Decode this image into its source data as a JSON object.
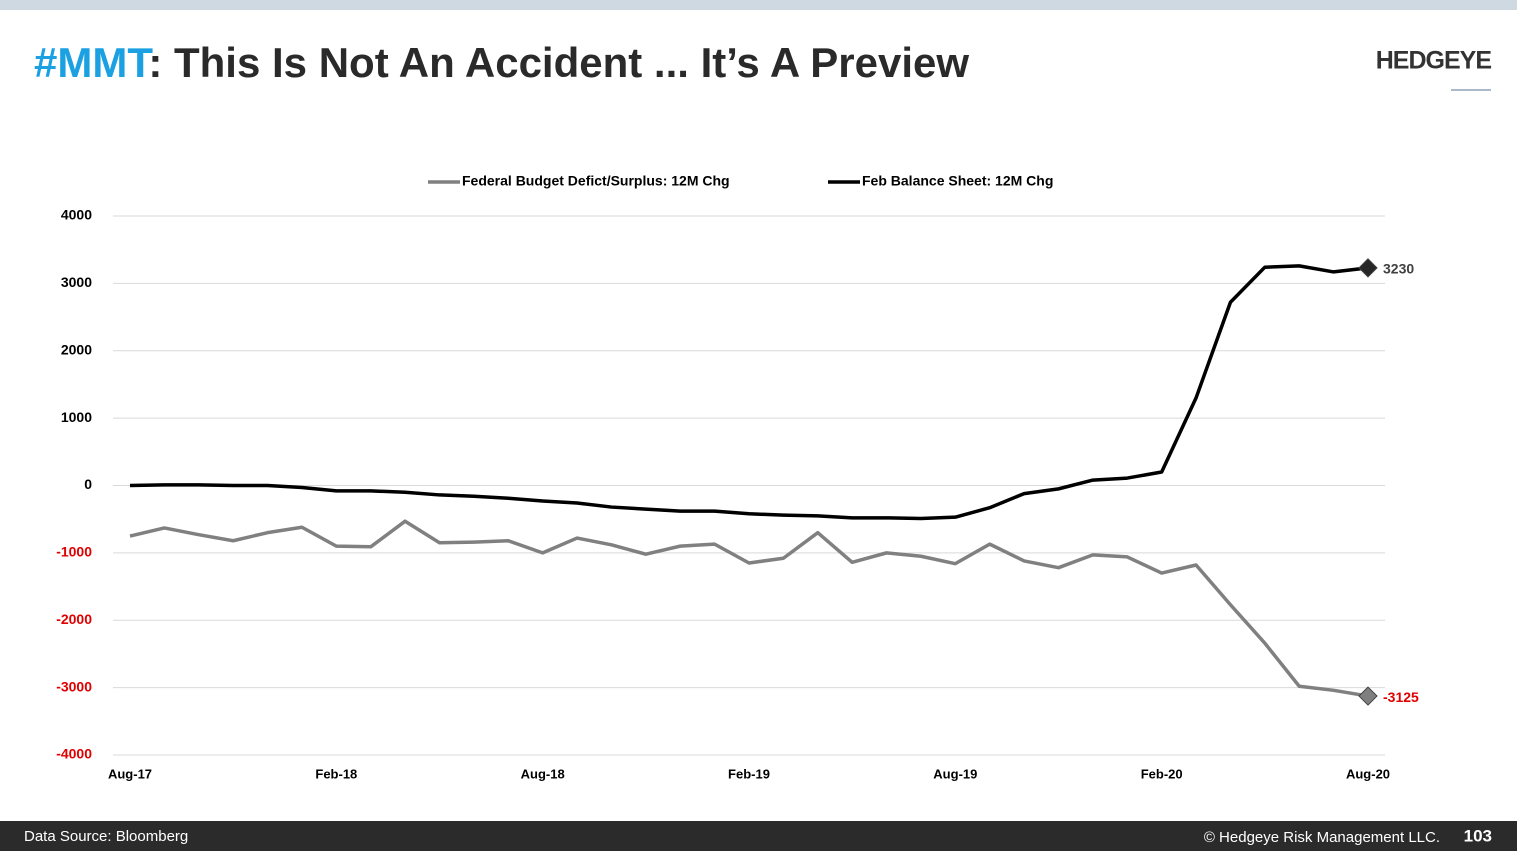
{
  "header": {
    "tag": "#MMT",
    "title": ":  This Is Not An Accident ... It’s A Preview",
    "logo": "HEDGEYE"
  },
  "chart_data": {
    "type": "line",
    "categories": [
      "Aug-17",
      null,
      null,
      null,
      null,
      null,
      "Feb-18",
      null,
      null,
      null,
      null,
      null,
      "Aug-18",
      null,
      null,
      null,
      null,
      null,
      "Feb-19",
      null,
      null,
      null,
      null,
      null,
      "Aug-19",
      null,
      null,
      null,
      null,
      null,
      "Feb-20",
      null,
      null,
      null,
      null,
      null,
      "Aug-20"
    ],
    "series": [
      {
        "name": "Federal Budget Defict/Surplus: 12M Chg",
        "color": "#808080",
        "values": [
          -750,
          -630,
          -730,
          -820,
          -700,
          -620,
          -900,
          -910,
          -530,
          -850,
          -840,
          -820,
          -1000,
          -780,
          -880,
          -1020,
          -900,
          -870,
          -1150,
          -1080,
          -700,
          -1140,
          -1000,
          -1050,
          -1160,
          -870,
          -1120,
          -1220,
          -1030,
          -1060,
          -1300,
          -1180,
          -1770,
          -2340,
          -2980,
          -3040,
          -3125
        ]
      },
      {
        "name": "Feb Balance Sheet: 12M Chg",
        "color": "#000000",
        "values": [
          0,
          10,
          10,
          0,
          0,
          -30,
          -80,
          -80,
          -100,
          -140,
          -160,
          -190,
          -230,
          -260,
          -320,
          -350,
          -380,
          -380,
          -420,
          -440,
          -450,
          -480,
          -480,
          -490,
          -470,
          -330,
          -120,
          -50,
          80,
          110,
          200,
          1300,
          2720,
          3240,
          3260,
          3170,
          3230
        ]
      }
    ],
    "ylim": [
      -4000,
      4000
    ],
    "yticks": [
      -4000,
      -3000,
      -2000,
      -1000,
      0,
      1000,
      2000,
      3000,
      4000
    ],
    "grid": true,
    "negative_tick_color": "#e00000",
    "legend": "top"
  },
  "footer": {
    "source": "Data Source: Bloomberg",
    "copyright": "© Hedgeye Risk Management LLC.",
    "page": "103"
  }
}
